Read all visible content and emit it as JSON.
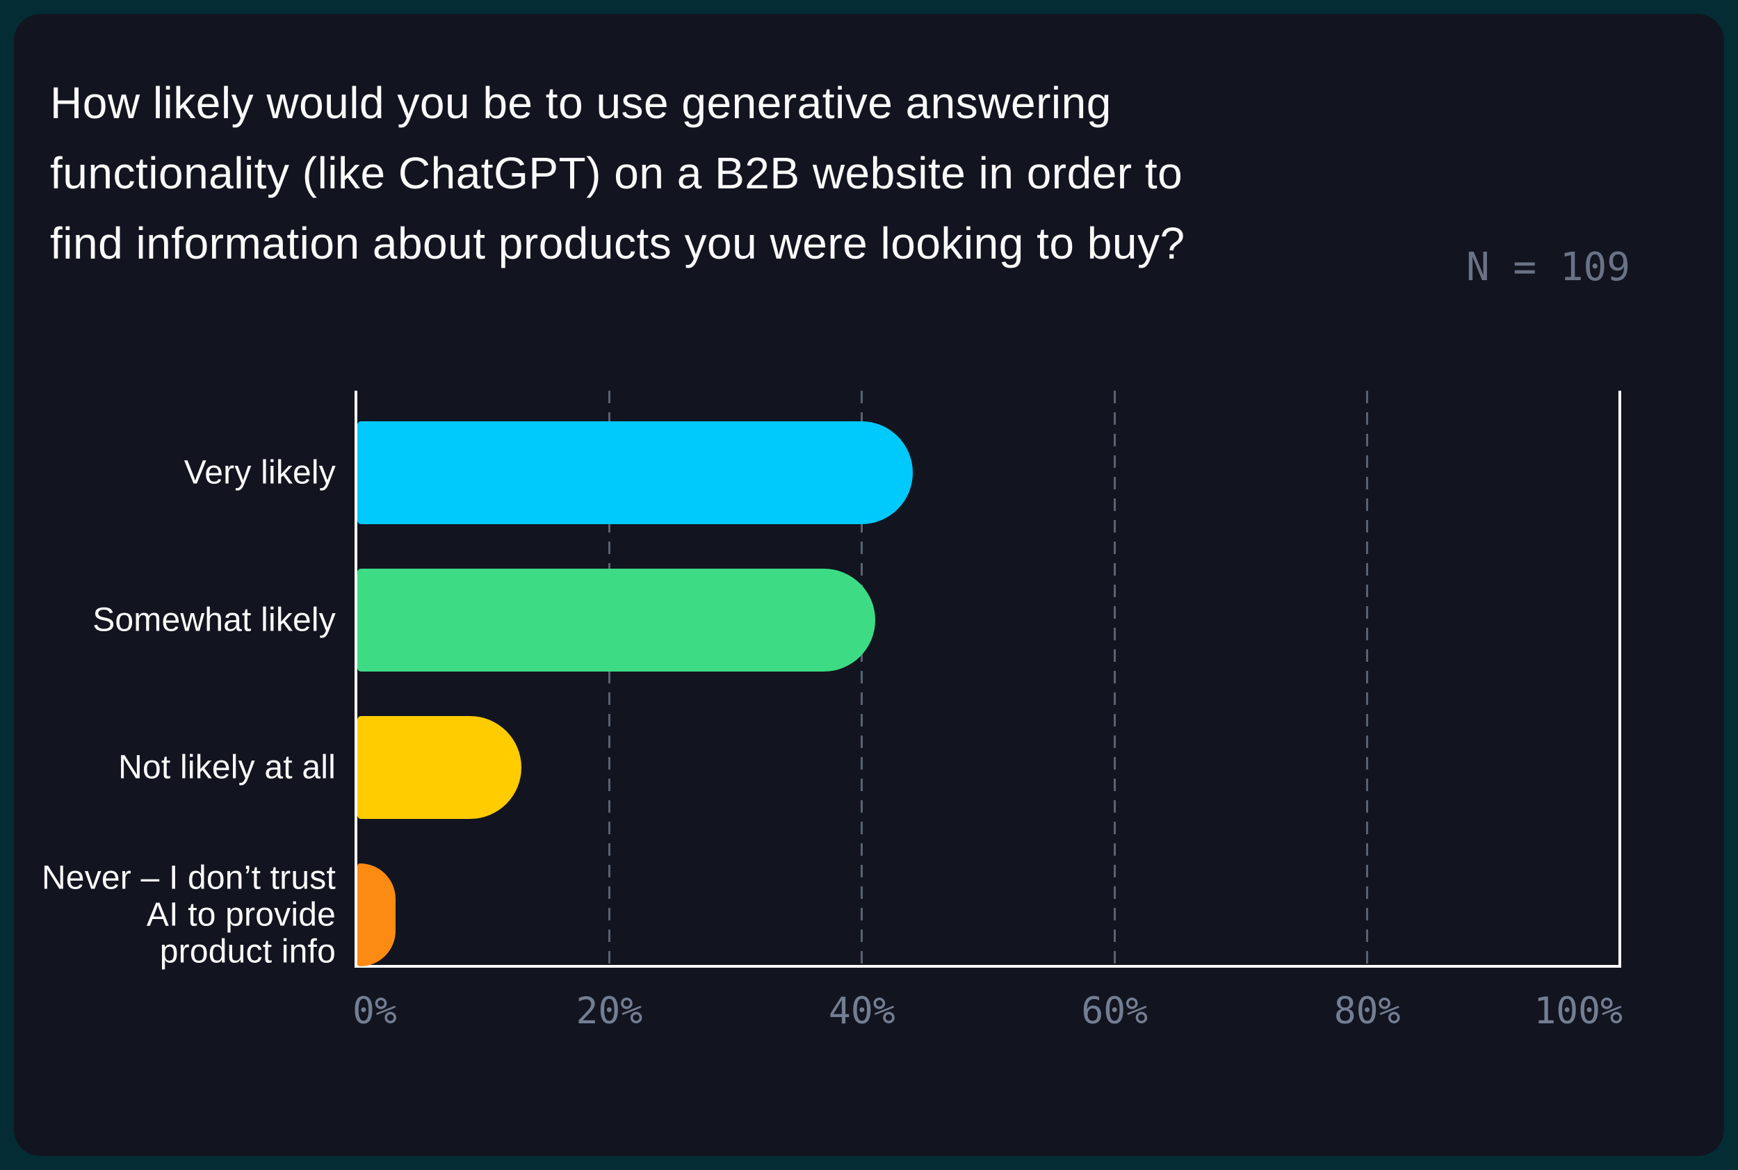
{
  "header": {
    "title_lines": [
      "How likely would you be to use generative answering",
      "functionality (like ChatGPT) on a B2B website in order to",
      "find information about products you were looking to buy?"
    ],
    "sample_size_label": "N = 109"
  },
  "chart_data": {
    "type": "bar",
    "orientation": "horizontal",
    "title": "How likely would you be to use generative answering functionality (like ChatGPT) on a B2B website in order to find information about products you were looking to buy?",
    "sample_size": 109,
    "categories": [
      "Very likely",
      "Somewhat likely",
      "Not likely at all",
      "Never – I don’t trust AI to provide product info"
    ],
    "category_label_lines": [
      [
        "Very likely"
      ],
      [
        "Somewhat likely"
      ],
      [
        "Not likely at all"
      ],
      [
        "Never – I don’t trust",
        "AI to provide",
        "product info"
      ]
    ],
    "values": [
      44,
      41,
      13,
      3
    ],
    "unit": "%",
    "bar_colors": [
      "#00C9FB",
      "#3DDC84",
      "#FFCC00",
      "#FC8B14"
    ],
    "xlim": [
      0,
      100
    ],
    "x_ticks": [
      {
        "label": "0%",
        "value": 0
      },
      {
        "label": "20%",
        "value": 20
      },
      {
        "label": "40%",
        "value": 40
      },
      {
        "label": "60%",
        "value": 60
      },
      {
        "label": "80%",
        "value": 80
      },
      {
        "label": "100%",
        "value": 100
      }
    ],
    "gridlines_at": [
      20,
      40,
      60,
      80
    ],
    "legend": "none"
  },
  "colors": {
    "page_background": "#042C35",
    "card_background": "#121520",
    "title_text": "#FAFAFA",
    "sample_size_text": "#6A7285",
    "axis_line": "#FFFFFF",
    "gridline": "#5A6272",
    "tick_label": "#747E93",
    "category_label": "#FAFAFA"
  }
}
